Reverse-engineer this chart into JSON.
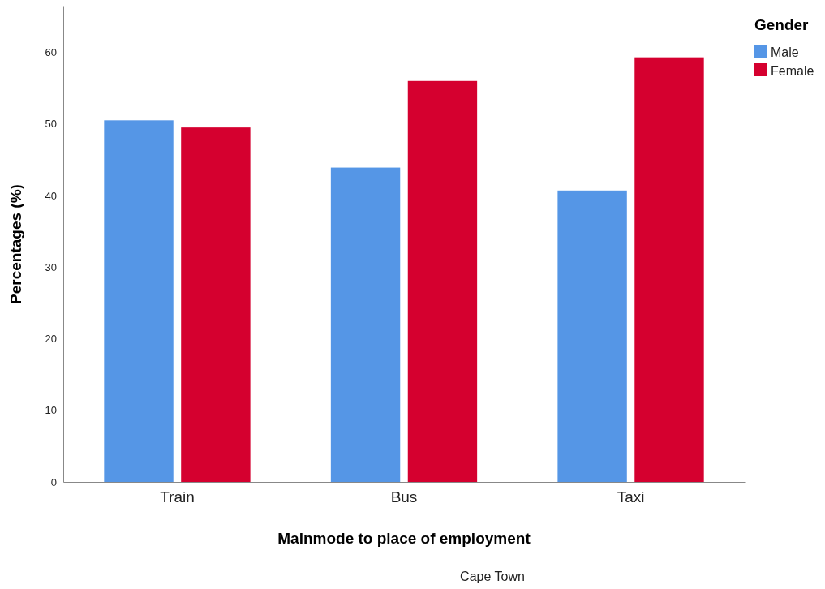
{
  "chart_data": {
    "type": "bar",
    "xlabel": "Mainmode to place of employment",
    "ylabel": "Percentages (%)",
    "legend_title": "Gender",
    "legend": "top right",
    "grid": false,
    "categories": [
      "Train",
      "Bus",
      "Taxi"
    ],
    "series": [
      {
        "name": "Male",
        "color": "#5596e6",
        "values": [
          50.5,
          43.9,
          40.7
        ]
      },
      {
        "name": "Female",
        "color": "#d5002f",
        "values": [
          49.5,
          56.0,
          59.3
        ]
      }
    ],
    "ylim": [
      0,
      66.4
    ],
    "yticks": [
      0,
      10,
      20,
      30,
      40,
      50,
      60
    ],
    "annotations": [
      "Cape Town"
    ]
  }
}
